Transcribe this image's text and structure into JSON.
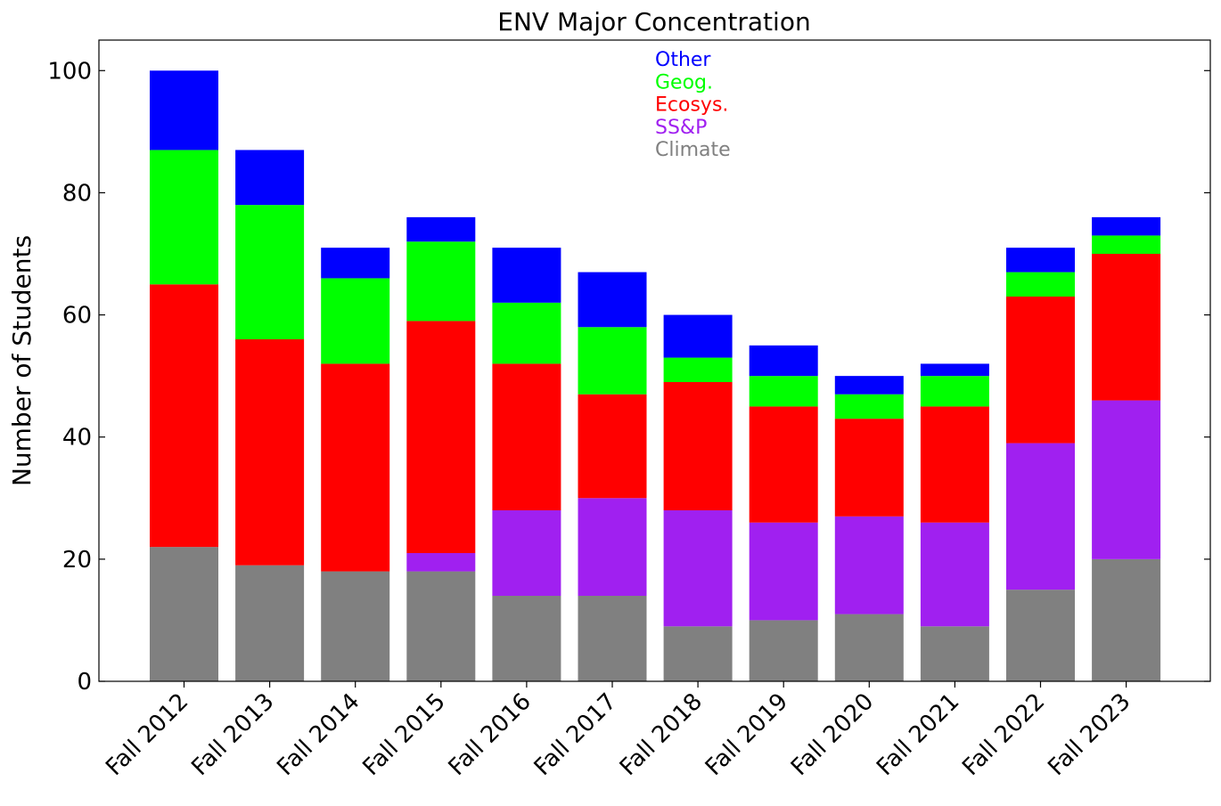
{
  "chart_data": {
    "type": "bar",
    "stacked": true,
    "title": "ENV Major Concentration",
    "xlabel": "",
    "ylabel": "Number of Students",
    "ylim": [
      0,
      105
    ],
    "yticks": [
      0,
      20,
      40,
      60,
      80,
      100
    ],
    "grid": false,
    "legend_position": "top-center",
    "categories": [
      "Fall 2012",
      "Fall 2013",
      "Fall 2014",
      "Fall 2015",
      "Fall 2016",
      "Fall 2017",
      "Fall 2018",
      "Fall 2019",
      "Fall 2020",
      "Fall 2021",
      "Fall 2022",
      "Fall 2023"
    ],
    "series": [
      {
        "name": "Climate",
        "color": "#808080",
        "values": [
          22,
          19,
          18,
          18,
          14,
          14,
          9,
          10,
          11,
          9,
          15,
          20
        ]
      },
      {
        "name": "SS&P",
        "color": "#a020f0",
        "values": [
          0,
          0,
          0,
          3,
          14,
          16,
          19,
          16,
          16,
          17,
          24,
          26
        ]
      },
      {
        "name": "Ecosys.",
        "color": "#ff0000",
        "values": [
          43,
          37,
          34,
          38,
          24,
          17,
          21,
          19,
          16,
          19,
          24,
          24
        ]
      },
      {
        "name": "Geog.",
        "color": "#00ff00",
        "values": [
          22,
          22,
          14,
          13,
          10,
          11,
          4,
          5,
          4,
          5,
          4,
          3
        ]
      },
      {
        "name": "Other",
        "color": "#0000ff",
        "values": [
          13,
          9,
          5,
          4,
          9,
          9,
          7,
          5,
          3,
          2,
          4,
          3
        ]
      }
    ]
  }
}
